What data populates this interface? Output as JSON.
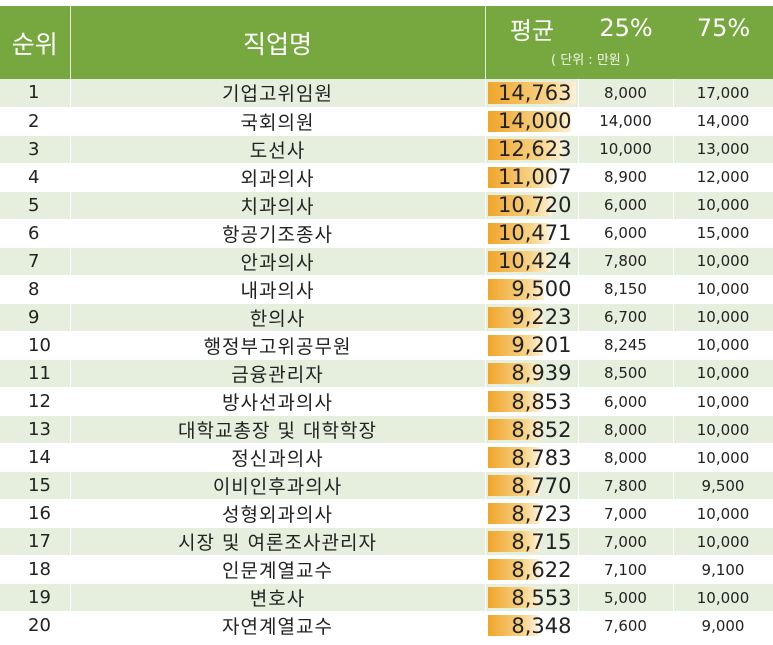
{
  "header": {
    "rank": "순위",
    "job": "직업명",
    "avg": "평균",
    "p25": "25%",
    "p75": "75%",
    "unit": "( 단위 : 만원 )"
  },
  "bar_color": "#f0a52a",
  "header_color": "#77a83f",
  "bar_max": 15000,
  "rows": [
    {
      "rank": "1",
      "job": "기업고위임원",
      "avg": "14,763",
      "p25": "8,000",
      "p75": "17,000",
      "value": 14763
    },
    {
      "rank": "2",
      "job": "국회의원",
      "avg": "14,000",
      "p25": "14,000",
      "p75": "14,000",
      "value": 14000
    },
    {
      "rank": "3",
      "job": "도선사",
      "avg": "12,623",
      "p25": "10,000",
      "p75": "13,000",
      "value": 12623
    },
    {
      "rank": "4",
      "job": "외과의사",
      "avg": "11,007",
      "p25": "8,900",
      "p75": "12,000",
      "value": 11007
    },
    {
      "rank": "5",
      "job": "치과의사",
      "avg": "10,720",
      "p25": "6,000",
      "p75": "10,000",
      "value": 10720
    },
    {
      "rank": "6",
      "job": "항공기조종사",
      "avg": "10,471",
      "p25": "6,000",
      "p75": "15,000",
      "value": 10471
    },
    {
      "rank": "7",
      "job": "안과의사",
      "avg": "10,424",
      "p25": "7,800",
      "p75": "10,000",
      "value": 10424
    },
    {
      "rank": "8",
      "job": "내과의사",
      "avg": "9,500",
      "p25": "8,150",
      "p75": "10,000",
      "value": 9500
    },
    {
      "rank": "9",
      "job": "한의사",
      "avg": "9,223",
      "p25": "6,700",
      "p75": "10,000",
      "value": 9223
    },
    {
      "rank": "10",
      "job": "행정부고위공무원",
      "avg": "9,201",
      "p25": "8,245",
      "p75": "10,000",
      "value": 9201
    },
    {
      "rank": "11",
      "job": "금융관리자",
      "avg": "8,939",
      "p25": "8,500",
      "p75": "10,000",
      "value": 8939
    },
    {
      "rank": "12",
      "job": "방사선과의사",
      "avg": "8,853",
      "p25": "6,000",
      "p75": "10,000",
      "value": 8853
    },
    {
      "rank": "13",
      "job": "대학교총장 및 대학학장",
      "avg": "8,852",
      "p25": "8,000",
      "p75": "10,000",
      "value": 8852
    },
    {
      "rank": "14",
      "job": "정신과의사",
      "avg": "8,783",
      "p25": "8,000",
      "p75": "10,000",
      "value": 8783
    },
    {
      "rank": "15",
      "job": "이비인후과의사",
      "avg": "8,770",
      "p25": "7,800",
      "p75": "9,500",
      "value": 8770
    },
    {
      "rank": "16",
      "job": "성형외과의사",
      "avg": "8,723",
      "p25": "7,000",
      "p75": "10,000",
      "value": 8723
    },
    {
      "rank": "17",
      "job": "시장 및 여론조사관리자",
      "avg": "8,715",
      "p25": "7,000",
      "p75": "10,000",
      "value": 8715
    },
    {
      "rank": "18",
      "job": "인문계열교수",
      "avg": "8,622",
      "p25": "7,100",
      "p75": "9,100",
      "value": 8622
    },
    {
      "rank": "19",
      "job": "변호사",
      "avg": "8,553",
      "p25": "5,000",
      "p75": "10,000",
      "value": 8553
    },
    {
      "rank": "20",
      "job": "자연계열교수",
      "avg": "8,348",
      "p25": "7,600",
      "p75": "9,000",
      "value": 8348
    }
  ]
}
